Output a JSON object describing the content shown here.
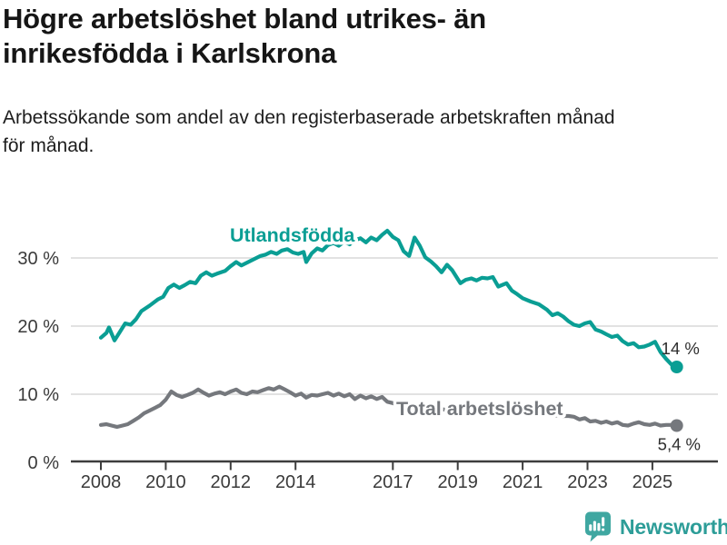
{
  "header": {
    "title_line1": "Högre arbetslöshet bland utrikes- än",
    "title_line2": "inrikesfödda i Karlskrona",
    "subtitle_line1": "Arbetssökande som andel av den registerbaserade arbetskraften månad",
    "subtitle_line2": "för månad."
  },
  "footer": {
    "brand": "Newsworthy",
    "icon": "newsworthy-chart-bubble-icon"
  },
  "colors": {
    "accent_teal": "#0a9e94",
    "series_gray": "#75787d",
    "grid": "#d9d9d9",
    "axis": "#3d3d3d",
    "axis_text": "#3a3a3a",
    "annotation_text": "#2e2e2e",
    "brand_teal": "#2d9d98",
    "logo_bubble_teal": "#3fa7a1"
  },
  "chart_data": {
    "type": "line",
    "title": "Högre arbetslöshet bland utrikes- än inrikesfödda i Karlskrona",
    "subtitle": "Arbetssökande som andel av den registerbaserade arbetskraften månad för månad.",
    "unit": "%",
    "grid": "horizontal",
    "legend_position": "inline-labels",
    "x_axis": {
      "range": [
        2007.5,
        2026.2
      ],
      "ticks": [
        2008,
        2010,
        2012,
        2014,
        2017,
        2019,
        2021,
        2023,
        2025
      ],
      "tick_labels": [
        "2008",
        "2010",
        "2012",
        "2014",
        "2017",
        "2019",
        "2021",
        "2023",
        "2025"
      ]
    },
    "y_axis": {
      "range": [
        0,
        36
      ],
      "ticks": [
        0,
        10,
        20,
        30
      ],
      "tick_labels": [
        "0 %",
        "10 %",
        "20 %",
        "30 %"
      ]
    },
    "series": [
      {
        "name": "Utlandsfödda",
        "color": "#0a9e94",
        "end_label": "14 %",
        "points": [
          [
            2008.0,
            18.3
          ],
          [
            2008.17,
            19.0
          ],
          [
            2008.25,
            19.8
          ],
          [
            2008.42,
            17.9
          ],
          [
            2008.58,
            19.1
          ],
          [
            2008.75,
            20.4
          ],
          [
            2008.92,
            20.2
          ],
          [
            2009.08,
            21.0
          ],
          [
            2009.25,
            22.2
          ],
          [
            2009.5,
            23.0
          ],
          [
            2009.75,
            23.9
          ],
          [
            2009.92,
            24.3
          ],
          [
            2010.08,
            25.6
          ],
          [
            2010.25,
            26.1
          ],
          [
            2010.42,
            25.6
          ],
          [
            2010.58,
            26.0
          ],
          [
            2010.75,
            26.5
          ],
          [
            2010.92,
            26.3
          ],
          [
            2011.08,
            27.4
          ],
          [
            2011.25,
            27.9
          ],
          [
            2011.42,
            27.4
          ],
          [
            2011.58,
            27.7
          ],
          [
            2011.83,
            28.1
          ],
          [
            2012.0,
            28.8
          ],
          [
            2012.17,
            29.4
          ],
          [
            2012.33,
            28.9
          ],
          [
            2012.5,
            29.3
          ],
          [
            2012.75,
            29.9
          ],
          [
            2012.92,
            30.3
          ],
          [
            2013.08,
            30.5
          ],
          [
            2013.25,
            30.9
          ],
          [
            2013.42,
            30.6
          ],
          [
            2013.58,
            31.1
          ],
          [
            2013.75,
            31.3
          ],
          [
            2013.92,
            30.8
          ],
          [
            2014.08,
            30.6
          ],
          [
            2014.25,
            30.9
          ],
          [
            2014.33,
            29.4
          ],
          [
            2014.5,
            30.7
          ],
          [
            2014.67,
            31.4
          ],
          [
            2014.83,
            31.1
          ],
          [
            2015.0,
            31.9
          ],
          [
            2015.17,
            32.2
          ],
          [
            2015.33,
            31.8
          ],
          [
            2015.5,
            32.4
          ],
          [
            2015.67,
            32.0
          ],
          [
            2015.83,
            32.6
          ],
          [
            2016.0,
            32.9
          ],
          [
            2016.17,
            32.3
          ],
          [
            2016.33,
            33.0
          ],
          [
            2016.5,
            32.6
          ],
          [
            2016.67,
            33.4
          ],
          [
            2016.83,
            34.0
          ],
          [
            2017.0,
            33.1
          ],
          [
            2017.17,
            32.6
          ],
          [
            2017.33,
            31.0
          ],
          [
            2017.5,
            30.3
          ],
          [
            2017.67,
            33.0
          ],
          [
            2017.83,
            31.8
          ],
          [
            2018.0,
            30.1
          ],
          [
            2018.17,
            29.5
          ],
          [
            2018.33,
            28.8
          ],
          [
            2018.5,
            27.9
          ],
          [
            2018.67,
            29.0
          ],
          [
            2018.83,
            28.2
          ],
          [
            2019.08,
            26.3
          ],
          [
            2019.25,
            26.8
          ],
          [
            2019.42,
            27.0
          ],
          [
            2019.58,
            26.7
          ],
          [
            2019.75,
            27.1
          ],
          [
            2019.92,
            27.0
          ],
          [
            2020.08,
            27.2
          ],
          [
            2020.25,
            25.8
          ],
          [
            2020.5,
            26.3
          ],
          [
            2020.67,
            25.2
          ],
          [
            2020.83,
            24.7
          ],
          [
            2021.0,
            24.1
          ],
          [
            2021.25,
            23.6
          ],
          [
            2021.5,
            23.2
          ],
          [
            2021.75,
            22.4
          ],
          [
            2021.92,
            21.6
          ],
          [
            2022.08,
            21.9
          ],
          [
            2022.25,
            21.4
          ],
          [
            2022.42,
            20.7
          ],
          [
            2022.58,
            20.2
          ],
          [
            2022.75,
            20.0
          ],
          [
            2022.92,
            20.4
          ],
          [
            2023.08,
            20.6
          ],
          [
            2023.25,
            19.5
          ],
          [
            2023.42,
            19.2
          ],
          [
            2023.58,
            18.8
          ],
          [
            2023.75,
            18.4
          ],
          [
            2023.92,
            18.6
          ],
          [
            2024.08,
            17.8
          ],
          [
            2024.25,
            17.3
          ],
          [
            2024.42,
            17.5
          ],
          [
            2024.58,
            16.9
          ],
          [
            2024.75,
            17.0
          ],
          [
            2024.92,
            17.3
          ],
          [
            2025.08,
            17.7
          ],
          [
            2025.25,
            16.2
          ],
          [
            2025.42,
            15.2
          ],
          [
            2025.58,
            14.4
          ],
          [
            2025.75,
            14.0
          ]
        ]
      },
      {
        "name": "Total arbetslöshet",
        "color": "#75787d",
        "end_label": "5,4 %",
        "points": [
          [
            2008.0,
            5.5
          ],
          [
            2008.17,
            5.6
          ],
          [
            2008.33,
            5.4
          ],
          [
            2008.5,
            5.2
          ],
          [
            2008.67,
            5.4
          ],
          [
            2008.83,
            5.6
          ],
          [
            2009.0,
            6.1
          ],
          [
            2009.17,
            6.6
          ],
          [
            2009.33,
            7.2
          ],
          [
            2009.5,
            7.6
          ],
          [
            2009.67,
            8.0
          ],
          [
            2009.83,
            8.4
          ],
          [
            2010.0,
            9.2
          ],
          [
            2010.17,
            10.4
          ],
          [
            2010.33,
            9.9
          ],
          [
            2010.5,
            9.6
          ],
          [
            2010.67,
            9.9
          ],
          [
            2010.83,
            10.2
          ],
          [
            2011.0,
            10.7
          ],
          [
            2011.17,
            10.2
          ],
          [
            2011.33,
            9.8
          ],
          [
            2011.5,
            10.1
          ],
          [
            2011.67,
            10.3
          ],
          [
            2011.83,
            10.0
          ],
          [
            2012.0,
            10.4
          ],
          [
            2012.17,
            10.7
          ],
          [
            2012.33,
            10.2
          ],
          [
            2012.5,
            10.0
          ],
          [
            2012.67,
            10.4
          ],
          [
            2012.83,
            10.3
          ],
          [
            2013.0,
            10.6
          ],
          [
            2013.17,
            10.9
          ],
          [
            2013.33,
            10.7
          ],
          [
            2013.5,
            11.1
          ],
          [
            2013.67,
            10.7
          ],
          [
            2013.83,
            10.3
          ],
          [
            2014.0,
            9.8
          ],
          [
            2014.17,
            10.1
          ],
          [
            2014.33,
            9.5
          ],
          [
            2014.5,
            9.9
          ],
          [
            2014.67,
            9.8
          ],
          [
            2014.83,
            10.0
          ],
          [
            2015.0,
            10.2
          ],
          [
            2015.17,
            9.8
          ],
          [
            2015.33,
            10.1
          ],
          [
            2015.5,
            9.7
          ],
          [
            2015.67,
            10.0
          ],
          [
            2015.83,
            9.3
          ],
          [
            2016.0,
            9.8
          ],
          [
            2016.17,
            9.4
          ],
          [
            2016.33,
            9.7
          ],
          [
            2016.5,
            9.3
          ],
          [
            2016.67,
            9.6
          ],
          [
            2016.83,
            8.9
          ],
          [
            2017.0,
            8.7
          ],
          [
            2017.17,
            8.4
          ],
          [
            2017.5,
            8.3
          ],
          [
            2018.0,
            8.1
          ],
          [
            2018.5,
            7.8
          ],
          [
            2019.0,
            7.5
          ],
          [
            2019.5,
            7.3
          ],
          [
            2020.0,
            7.8
          ],
          [
            2020.5,
            8.1
          ],
          [
            2021.0,
            7.7
          ],
          [
            2021.5,
            7.2
          ],
          [
            2022.0,
            6.9
          ],
          [
            2022.25,
            6.8
          ],
          [
            2022.42,
            6.8
          ],
          [
            2022.58,
            6.7
          ],
          [
            2022.75,
            6.3
          ],
          [
            2022.92,
            6.5
          ],
          [
            2023.08,
            6.0
          ],
          [
            2023.25,
            6.1
          ],
          [
            2023.42,
            5.8
          ],
          [
            2023.58,
            6.0
          ],
          [
            2023.75,
            5.7
          ],
          [
            2023.92,
            5.9
          ],
          [
            2024.08,
            5.5
          ],
          [
            2024.25,
            5.4
          ],
          [
            2024.42,
            5.7
          ],
          [
            2024.58,
            5.9
          ],
          [
            2024.75,
            5.6
          ],
          [
            2024.92,
            5.5
          ],
          [
            2025.08,
            5.7
          ],
          [
            2025.25,
            5.4
          ],
          [
            2025.42,
            5.5
          ],
          [
            2025.58,
            5.5
          ],
          [
            2025.75,
            5.4
          ]
        ]
      }
    ]
  }
}
